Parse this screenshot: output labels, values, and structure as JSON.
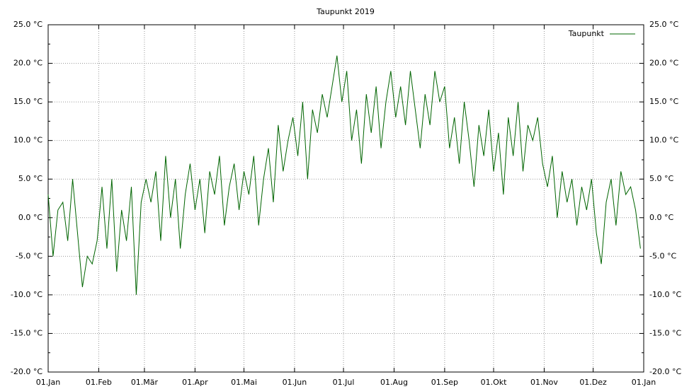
{
  "chart_data": {
    "type": "line",
    "title": "Taupunkt 2019",
    "x": [
      0,
      3,
      6,
      9,
      12,
      15,
      18,
      21,
      24,
      27,
      30,
      33,
      36,
      39,
      42,
      45,
      48,
      51,
      54,
      57,
      60,
      63,
      66,
      69,
      72,
      75,
      78,
      81,
      84,
      87,
      90,
      93,
      96,
      99,
      102,
      105,
      108,
      111,
      114,
      117,
      120,
      123,
      126,
      129,
      132,
      135,
      138,
      141,
      144,
      147,
      150,
      153,
      156,
      159,
      162,
      165,
      168,
      171,
      174,
      177,
      180,
      183,
      186,
      189,
      192,
      195,
      198,
      201,
      204,
      207,
      210,
      213,
      216,
      219,
      222,
      225,
      228,
      231,
      234,
      237,
      240,
      243,
      246,
      249,
      252,
      255,
      258,
      261,
      264,
      267,
      270,
      273,
      276,
      279,
      282,
      285,
      288,
      291,
      294,
      297,
      300,
      303,
      306,
      309,
      312,
      315,
      318,
      321,
      324,
      327,
      330,
      333,
      336,
      339,
      342,
      345,
      348,
      351,
      354,
      357,
      360,
      363
    ],
    "series": [
      {
        "name": "Taupunkt",
        "color": "#006400",
        "values": [
          3,
          -5,
          1,
          2,
          -3,
          5,
          -2,
          -9,
          -5,
          -6,
          -3,
          4,
          -4,
          5,
          -7,
          1,
          -3,
          4,
          -10,
          2,
          5,
          2,
          6,
          -3,
          8,
          0,
          5,
          -4,
          3,
          7,
          1,
          5,
          -2,
          6,
          3,
          8,
          -1,
          4,
          7,
          1,
          6,
          3,
          8,
          -1,
          5,
          9,
          2,
          12,
          6,
          10,
          13,
          8,
          15,
          5,
          14,
          11,
          16,
          13,
          17,
          21,
          15,
          19,
          10,
          14,
          7,
          16,
          11,
          17,
          9,
          15,
          19,
          13,
          17,
          12,
          19,
          14,
          9,
          16,
          12,
          19,
          15,
          17,
          9,
          13,
          7,
          15,
          10,
          4,
          12,
          8,
          14,
          6,
          11,
          3,
          13,
          8,
          15,
          6,
          12,
          10,
          13,
          7,
          4,
          8,
          0,
          6,
          2,
          5,
          -1,
          4,
          1,
          5,
          -2,
          -6,
          2,
          5,
          -1,
          6,
          3,
          4,
          1,
          -4
        ]
      }
    ],
    "xlim": [
      0,
      365
    ],
    "xticks": [
      {
        "value": 0,
        "label": "01.Jan"
      },
      {
        "value": 31,
        "label": "01.Feb"
      },
      {
        "value": 59,
        "label": "01.Mär"
      },
      {
        "value": 90,
        "label": "01.Apr"
      },
      {
        "value": 120,
        "label": "01.Mai"
      },
      {
        "value": 151,
        "label": "01.Jun"
      },
      {
        "value": 181,
        "label": "01.Jul"
      },
      {
        "value": 212,
        "label": "01.Aug"
      },
      {
        "value": 243,
        "label": "01.Sep"
      },
      {
        "value": 273,
        "label": "01.Okt"
      },
      {
        "value": 304,
        "label": "01.Nov"
      },
      {
        "value": 334,
        "label": "01.Dez"
      },
      {
        "value": 365,
        "label": "01.Jan"
      }
    ],
    "ylim": [
      -20,
      25
    ],
    "yticks": [
      {
        "value": -20,
        "label": "-20.0 °C"
      },
      {
        "value": -15,
        "label": "-15.0 °C"
      },
      {
        "value": -10,
        "label": "-10.0 °C"
      },
      {
        "value": -5,
        "label": "-5.0 °C"
      },
      {
        "value": 0,
        "label": "0.0 °C"
      },
      {
        "value": 5,
        "label": "5.0 °C"
      },
      {
        "value": 10,
        "label": "10.0 °C"
      },
      {
        "value": 15,
        "label": "15.0 °C"
      },
      {
        "value": 20,
        "label": "20.0 °C"
      },
      {
        "value": 25,
        "label": "25.0 °C"
      }
    ],
    "grid": true,
    "legend": "upper right"
  }
}
